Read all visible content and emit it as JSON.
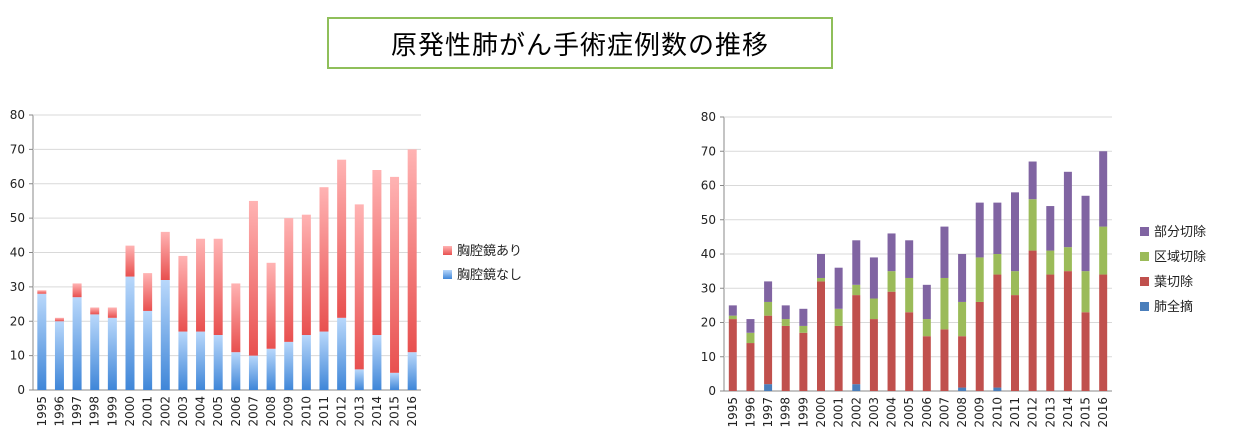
{
  "title": "原発性肺がん手術症例数の推移",
  "colors": {
    "title_border": "#8fbf5a",
    "with_vats": "#e8504f",
    "without_vats": "#3f86d8",
    "pneumonectomy": "#4a7ebb",
    "lobectomy": "#c0504d",
    "segmentectomy": "#9bbb59",
    "partial": "#8064a2"
  },
  "chart_data": [
    {
      "type": "bar",
      "stacked": true,
      "categories": [
        "1995",
        "1996",
        "1997",
        "1998",
        "1999",
        "2000",
        "2001",
        "2002",
        "2003",
        "2004",
        "2005",
        "2006",
        "2007",
        "2008",
        "2009",
        "2010",
        "2011",
        "2012",
        "2013",
        "2014",
        "2015",
        "2016"
      ],
      "series": [
        {
          "name": "胸腔鏡なし",
          "values": [
            28,
            20,
            27,
            22,
            21,
            33,
            23,
            32,
            17,
            17,
            16,
            11,
            10,
            12,
            14,
            16,
            17,
            21,
            6,
            16,
            5,
            11
          ]
        },
        {
          "name": "胸腔鏡あり",
          "values": [
            1,
            1,
            4,
            2,
            3,
            9,
            11,
            14,
            22,
            27,
            28,
            20,
            45,
            25,
            36,
            35,
            42,
            46,
            48,
            48,
            57,
            59
          ]
        }
      ],
      "ylim": [
        0,
        80
      ],
      "yticks": [
        0,
        10,
        20,
        30,
        40,
        50,
        60,
        70,
        80
      ],
      "legend_position": "right",
      "legend_order": [
        "胸腔鏡あり",
        "胸腔鏡なし"
      ],
      "grid": true
    },
    {
      "type": "bar",
      "stacked": true,
      "categories": [
        "1995",
        "1996",
        "1997",
        "1998",
        "1999",
        "2000",
        "2001",
        "2002",
        "2003",
        "2004",
        "2005",
        "2006",
        "2007",
        "2008",
        "2009",
        "2010",
        "2011",
        "2012",
        "2013",
        "2014",
        "2015",
        "2016"
      ],
      "series": [
        {
          "name": "肺全摘",
          "values": [
            0,
            0,
            2,
            0,
            0,
            0,
            0,
            2,
            0,
            0,
            0,
            0,
            0,
            1,
            0,
            1,
            0,
            0,
            0,
            0,
            0,
            0
          ]
        },
        {
          "name": "葉切除",
          "values": [
            21,
            14,
            20,
            19,
            17,
            32,
            19,
            26,
            21,
            29,
            23,
            16,
            18,
            15,
            26,
            33,
            28,
            41,
            34,
            35,
            23,
            34
          ]
        },
        {
          "name": "区域切除",
          "values": [
            1,
            3,
            4,
            2,
            2,
            1,
            5,
            3,
            6,
            6,
            10,
            5,
            15,
            10,
            13,
            6,
            7,
            15,
            7,
            7,
            12,
            14
          ]
        },
        {
          "name": "部分切除",
          "values": [
            3,
            4,
            6,
            4,
            5,
            7,
            12,
            13,
            12,
            11,
            11,
            10,
            15,
            14,
            16,
            15,
            23,
            11,
            13,
            22,
            22,
            22
          ]
        }
      ],
      "ylim": [
        0,
        80
      ],
      "yticks": [
        0,
        10,
        20,
        30,
        40,
        50,
        60,
        70,
        80
      ],
      "legend_position": "right",
      "legend_order": [
        "部分切除",
        "区域切除",
        "葉切除",
        "肺全摘"
      ],
      "grid": true
    }
  ]
}
